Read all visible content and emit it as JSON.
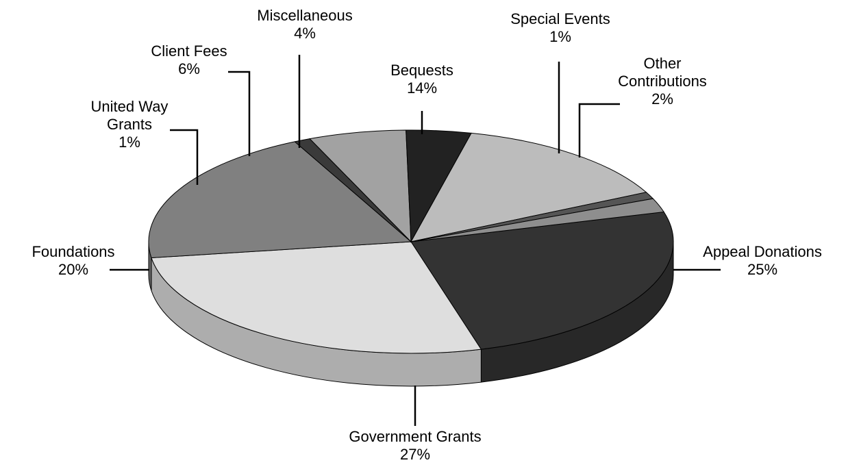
{
  "chart_data": {
    "type": "pie",
    "title": "",
    "slices": [
      {
        "label": "Appeal Donations",
        "value": 25,
        "value_label": "25%",
        "color": "#333333"
      },
      {
        "label": "Government Grants",
        "value": 27,
        "value_label": "27%",
        "color": "#dedede"
      },
      {
        "label": "Foundations",
        "value": 20,
        "value_label": "20%",
        "color": "#808080"
      },
      {
        "label": "United Way Grants",
        "value": 1,
        "value_label": "1%",
        "color": "#3a3a3a"
      },
      {
        "label": "Client Fees",
        "value": 6,
        "value_label": "6%",
        "color": "#a2a2a2"
      },
      {
        "label": "Miscellaneous",
        "value": 4,
        "value_label": "4%",
        "color": "#222222"
      },
      {
        "label": "Bequests",
        "value": 14,
        "value_label": "14%",
        "color": "#bcbcbc"
      },
      {
        "label": "Special Events",
        "value": 1,
        "value_label": "1%",
        "color": "#555555"
      },
      {
        "label": "Other Contributions",
        "value": 2,
        "value_label": "2%",
        "color": "#8e8e8e"
      }
    ]
  }
}
